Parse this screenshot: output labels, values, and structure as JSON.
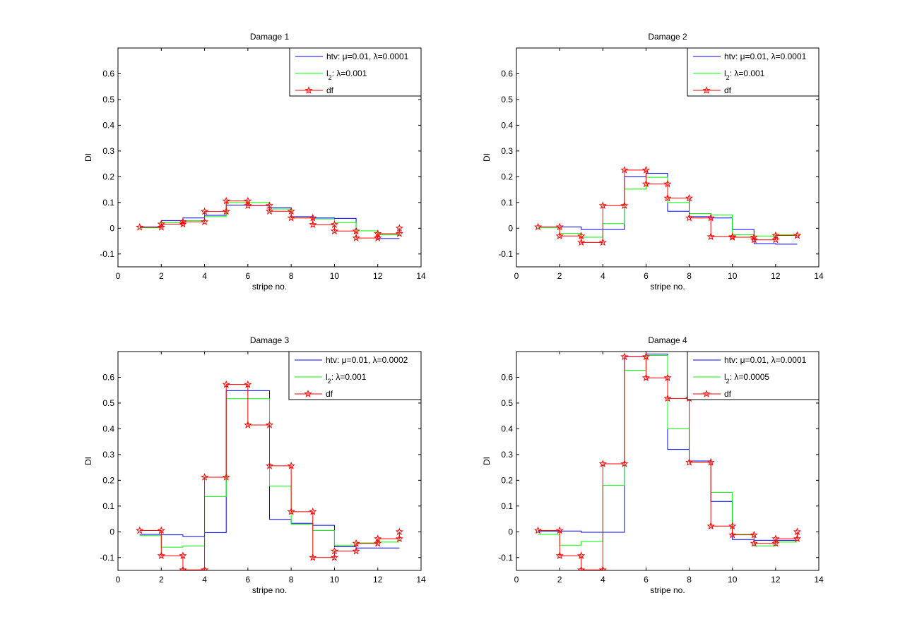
{
  "chart_data": [
    {
      "type": "line",
      "title": "Damage 1",
      "xlabel": "stripe no.",
      "ylabel": "DI",
      "xlim": [
        0,
        14
      ],
      "ylim": [
        -0.15,
        0.7
      ],
      "xticks": [
        0,
        2,
        4,
        6,
        8,
        10,
        12,
        14
      ],
      "yticks": [
        -0.1,
        0,
        0.1,
        0.2,
        0.3,
        0.4,
        0.5,
        0.6
      ],
      "ytick_labels": [
        "-0.1",
        "0",
        "0.1",
        "0.2",
        "0.3",
        "0.4",
        "0.5",
        "0.6"
      ],
      "legend_position": "top-right",
      "series": [
        {
          "name": "htv: μ=0.01, λ=0.0001",
          "color": "#0000ff",
          "marker": "none",
          "x": [
            1,
            2,
            3,
            4,
            5,
            6,
            7,
            8,
            9,
            10,
            11,
            12,
            13
          ],
          "y": [
            0.005,
            0.03,
            0.04,
            0.05,
            0.09,
            0.088,
            0.08,
            0.045,
            0.04,
            0.038,
            -0.01,
            -0.04,
            -0.04
          ]
        },
        {
          "name": "l2: λ=0.001",
          "color": "#00ff00",
          "marker": "none",
          "x": [
            1,
            2,
            3,
            4,
            5,
            6,
            7,
            8,
            9,
            10,
            11,
            12,
            13
          ],
          "y": [
            0.002,
            0.022,
            0.03,
            0.045,
            0.1,
            0.1,
            0.075,
            0.04,
            0.036,
            0.022,
            -0.01,
            -0.025,
            -0.025
          ]
        },
        {
          "name": "df",
          "color": "#ff0000",
          "marker": "star",
          "x": [
            1,
            2,
            3,
            4,
            5,
            6,
            7,
            8,
            9,
            10,
            11,
            12,
            13
          ],
          "y": [
            0.004,
            0.016,
            0.025,
            0.065,
            0.106,
            0.088,
            0.066,
            0.04,
            0.014,
            -0.011,
            -0.038,
            -0.021,
            0.0
          ]
        }
      ]
    },
    {
      "type": "line",
      "title": "Damage 2",
      "xlabel": "stripe no.",
      "ylabel": "DI",
      "xlim": [
        0,
        14
      ],
      "ylim": [
        -0.15,
        0.7
      ],
      "xticks": [
        0,
        2,
        4,
        6,
        8,
        10,
        12,
        14
      ],
      "yticks": [
        -0.1,
        0,
        0.1,
        0.2,
        0.3,
        0.4,
        0.5,
        0.6
      ],
      "ytick_labels": [
        "-0.1",
        "0",
        "0.1",
        "0.2",
        "0.3",
        "0.4",
        "0.5",
        "0.6"
      ],
      "legend_position": "top-right",
      "series": [
        {
          "name": "htv: μ=0.01, λ=0.0001",
          "color": "#0000ff",
          "marker": "none",
          "x": [
            1,
            2,
            3,
            4,
            5,
            6,
            7,
            8,
            9,
            10,
            11,
            12,
            13
          ],
          "y": [
            0.005,
            0.005,
            -0.005,
            -0.005,
            0.2,
            0.213,
            0.066,
            0.045,
            0.04,
            -0.005,
            -0.06,
            -0.062,
            -0.062
          ]
        },
        {
          "name": "l2: λ=0.001",
          "color": "#00ff00",
          "marker": "none",
          "x": [
            1,
            2,
            3,
            4,
            5,
            6,
            7,
            8,
            9,
            10,
            11,
            12,
            13
          ],
          "y": [
            0.003,
            -0.02,
            -0.035,
            0.018,
            0.152,
            0.198,
            0.1,
            0.057,
            0.052,
            -0.025,
            -0.03,
            -0.025,
            -0.025
          ]
        },
        {
          "name": "df",
          "color": "#ff0000",
          "marker": "star",
          "x": [
            1,
            2,
            3,
            4,
            5,
            6,
            7,
            8,
            9,
            10,
            11,
            12,
            13
          ],
          "y": [
            0.005,
            -0.03,
            -0.055,
            0.088,
            0.226,
            0.172,
            0.117,
            0.04,
            -0.033,
            -0.035,
            -0.045,
            -0.028,
            -0.028
          ]
        }
      ]
    },
    {
      "type": "line",
      "title": "Damage 3",
      "xlabel": "stripe no.",
      "ylabel": "DI",
      "xlim": [
        0,
        14
      ],
      "ylim": [
        -0.15,
        0.7
      ],
      "xticks": [
        0,
        2,
        4,
        6,
        8,
        10,
        12,
        14
      ],
      "yticks": [
        -0.1,
        0,
        0.1,
        0.2,
        0.3,
        0.4,
        0.5,
        0.6
      ],
      "ytick_labels": [
        "-0.1",
        "0",
        "0.1",
        "0.2",
        "0.3",
        "0.4",
        "0.5",
        "0.6"
      ],
      "legend_position": "top-right",
      "series": [
        {
          "name": "htv: μ=0.01, λ=0.0002",
          "color": "#0000ff",
          "marker": "none",
          "x": [
            1,
            2,
            3,
            4,
            5,
            6,
            7,
            8,
            9,
            10,
            11,
            12,
            13
          ],
          "y": [
            -0.01,
            -0.012,
            -0.018,
            -0.003,
            0.548,
            0.548,
            0.048,
            0.033,
            0.025,
            -0.058,
            -0.063,
            -0.063,
            -0.063
          ]
        },
        {
          "name": "l2: λ=0.001",
          "color": "#00ff00",
          "marker": "none",
          "x": [
            1,
            2,
            3,
            4,
            5,
            6,
            7,
            8,
            9,
            10,
            11,
            12,
            13
          ],
          "y": [
            -0.015,
            -0.06,
            -0.055,
            0.137,
            0.517,
            0.517,
            0.178,
            0.03,
            0.005,
            -0.052,
            -0.043,
            -0.04,
            -0.04
          ]
        },
        {
          "name": "df",
          "color": "#ff0000",
          "marker": "star",
          "x": [
            1,
            2,
            3,
            4,
            5,
            6,
            7,
            8,
            9,
            10,
            11,
            12,
            13
          ],
          "y": [
            0.005,
            -0.093,
            -0.148,
            0.212,
            0.572,
            0.415,
            0.256,
            0.078,
            -0.1,
            -0.075,
            -0.045,
            -0.027,
            0.0
          ]
        }
      ]
    },
    {
      "type": "line",
      "title": "Damage 4",
      "xlabel": "stripe no.",
      "ylabel": "DI",
      "xlim": [
        0,
        14
      ],
      "ylim": [
        -0.15,
        0.7
      ],
      "xticks": [
        0,
        2,
        4,
        6,
        8,
        10,
        12,
        14
      ],
      "yticks": [
        -0.1,
        0,
        0.1,
        0.2,
        0.3,
        0.4,
        0.5,
        0.6
      ],
      "ytick_labels": [
        "-0.1",
        "0",
        "0.1",
        "0.2",
        "0.3",
        "0.4",
        "0.5",
        "0.6"
      ],
      "legend_position": "top-right",
      "series": [
        {
          "name": "htv: μ=0.01, λ=0.0001",
          "color": "#0000ff",
          "marker": "none",
          "x": [
            1,
            2,
            3,
            4,
            5,
            6,
            7,
            8,
            9,
            10,
            11,
            12,
            13
          ],
          "y": [
            0.003,
            0.003,
            -0.002,
            -0.002,
            0.68,
            0.69,
            0.32,
            0.275,
            0.118,
            -0.03,
            -0.033,
            -0.033,
            -0.033
          ]
        },
        {
          "name": "l2: λ=0.0005",
          "color": "#00ff00",
          "marker": "none",
          "x": [
            1,
            2,
            3,
            4,
            5,
            6,
            7,
            8,
            9,
            10,
            11,
            12,
            13
          ],
          "y": [
            -0.01,
            -0.052,
            -0.038,
            0.18,
            0.627,
            0.685,
            0.4,
            0.27,
            0.153,
            -0.01,
            -0.055,
            -0.04,
            -0.04
          ]
        },
        {
          "name": "df",
          "color": "#ff0000",
          "marker": "star",
          "x": [
            1,
            2,
            3,
            4,
            5,
            6,
            7,
            8,
            9,
            10,
            11,
            12,
            13
          ],
          "y": [
            0.005,
            -0.093,
            -0.148,
            0.264,
            0.68,
            0.598,
            0.518,
            0.27,
            0.022,
            -0.012,
            -0.045,
            -0.027,
            0.0
          ]
        }
      ]
    }
  ]
}
